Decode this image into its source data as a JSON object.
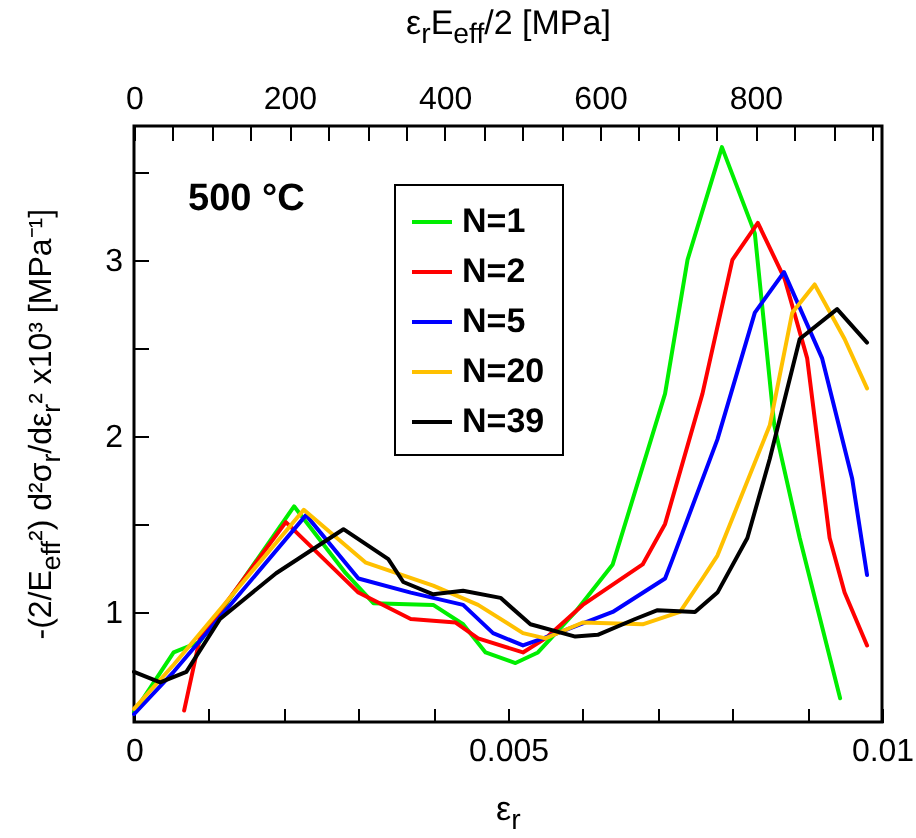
{
  "chart_data": {
    "type": "line",
    "xlabel": "ε$_{r}$",
    "x2label": "ε$_{r}$E$_{eff}$/2 [MPa]",
    "ylabel": "-(2/E$_{eff}$²) d²σ$_{r}$/dε$_{r}$² x10³ [MPa⁻¹]",
    "annotations": [
      "500 °C"
    ],
    "xlim": [
      0,
      0.01
    ],
    "xticks": [
      0,
      {
        "value": 0.001,
        "label": null
      },
      {
        "value": 0.002,
        "label": null
      },
      {
        "value": 0.003,
        "label": null
      },
      {
        "value": 0.004,
        "label": null
      },
      0.005,
      {
        "value": 0.006,
        "label": null
      },
      {
        "value": 0.007,
        "label": null
      },
      {
        "value": 0.008,
        "label": null
      },
      {
        "value": 0.009,
        "label": null
      },
      0.01
    ],
    "x2lim": [
      0,
      963
    ],
    "x2ticks": [
      0,
      {
        "value": 50,
        "label": null
      },
      {
        "value": 100,
        "label": null
      },
      {
        "value": 150,
        "label": null
      },
      200,
      {
        "value": 250,
        "label": null
      },
      {
        "value": 300,
        "label": null
      },
      {
        "value": 350,
        "label": null
      },
      400,
      {
        "value": 450,
        "label": null
      },
      {
        "value": 500,
        "label": null
      },
      {
        "value": 550,
        "label": null
      },
      600,
      {
        "value": 650,
        "label": null
      },
      {
        "value": 700,
        "label": null
      },
      {
        "value": 750,
        "label": null
      },
      800,
      {
        "value": 850,
        "label": null
      },
      {
        "value": 900,
        "label": null
      },
      {
        "value": 950,
        "label": null
      }
    ],
    "ylim": [
      0.375,
      3.76
    ],
    "yticks": [
      1,
      {
        "value": 1.5,
        "label": null
      },
      2,
      {
        "value": 2.5,
        "label": null
      },
      3,
      {
        "value": 3.5,
        "label": null
      }
    ],
    "grid": false,
    "legend": "top left",
    "marker": "none",
    "line_style": "solid",
    "series": [
      {
        "name": "N=1",
        "color": "#00ee00",
        "x": [
          0,
          0.00053,
          0.00088,
          0.00214,
          0.00283,
          0.0032,
          0.004,
          0.0044,
          0.0047,
          0.0051,
          0.0054,
          0.0059,
          0.0064,
          0.0071,
          0.0074,
          0.00786,
          0.0083,
          0.00856,
          0.0089,
          0.00944
        ],
        "values": [
          0.43,
          0.77,
          0.83,
          1.6,
          1.22,
          1.05,
          1.04,
          0.93,
          0.77,
          0.71,
          0.77,
          1.0,
          1.27,
          2.24,
          3.0,
          3.64,
          3.15,
          2.06,
          1.42,
          0.51
        ]
      },
      {
        "name": "N=2",
        "color": "#ff0000",
        "x": [
          0.00067,
          0.00088,
          0.00203,
          0.003,
          0.0037,
          0.0043,
          0.0046,
          0.0052,
          0.0055,
          0.006,
          0.0068,
          0.0071,
          0.0076,
          0.008,
          0.00834,
          0.0087,
          0.009,
          0.0093,
          0.0095,
          0.0098
        ],
        "values": [
          0.44,
          0.85,
          1.51,
          1.11,
          0.96,
          0.94,
          0.85,
          0.77,
          0.85,
          1.04,
          1.27,
          1.5,
          2.24,
          3.0,
          3.21,
          2.89,
          2.44,
          1.42,
          1.11,
          0.81
        ]
      },
      {
        "name": "N=5",
        "color": "#0000ff",
        "x": [
          0,
          0.00053,
          0.00107,
          0.0023,
          0.003,
          0.0037,
          0.0044,
          0.0048,
          0.0052,
          0.0056,
          0.0064,
          0.0071,
          0.0072,
          0.0078,
          0.0083,
          0.00869,
          0.0092,
          0.0096,
          0.0098
        ],
        "values": [
          0.42,
          0.66,
          0.93,
          1.55,
          1.19,
          1.11,
          1.04,
          0.88,
          0.81,
          0.87,
          1.0,
          1.19,
          1.3,
          1.98,
          2.7,
          2.93,
          2.44,
          1.76,
          1.21
        ]
      },
      {
        "name": "N=20",
        "color": "#ffc000",
        "x": [
          0,
          0.00053,
          0.00227,
          0.0031,
          0.004,
          0.0046,
          0.0052,
          0.0055,
          0.006,
          0.0068,
          0.0073,
          0.0076,
          0.0078,
          0.0085,
          0.0088,
          0.0091,
          0.0095,
          0.0098
        ],
        "values": [
          0.45,
          0.7,
          1.58,
          1.28,
          1.15,
          1.04,
          0.88,
          0.85,
          0.94,
          0.93,
          1.0,
          1.19,
          1.32,
          2.06,
          2.7,
          2.86,
          2.55,
          2.27
        ]
      },
      {
        "name": "N=39",
        "color": "#000000",
        "x": [
          0,
          0.00035,
          0.0007,
          0.00115,
          0.0019,
          0.0028,
          0.0034,
          0.0036,
          0.004,
          0.0044,
          0.0049,
          0.0053,
          0.0059,
          0.0062,
          0.0067,
          0.007,
          0.0075,
          0.0078,
          0.0082,
          0.0085,
          0.0089,
          0.0094,
          0.0098
        ],
        "values": [
          0.66,
          0.6,
          0.66,
          0.96,
          1.22,
          1.47,
          1.3,
          1.17,
          1.1,
          1.12,
          1.08,
          0.93,
          0.86,
          0.87,
          0.96,
          1.01,
          1.0,
          1.11,
          1.42,
          1.87,
          2.55,
          2.72,
          2.53
        ]
      }
    ]
  }
}
